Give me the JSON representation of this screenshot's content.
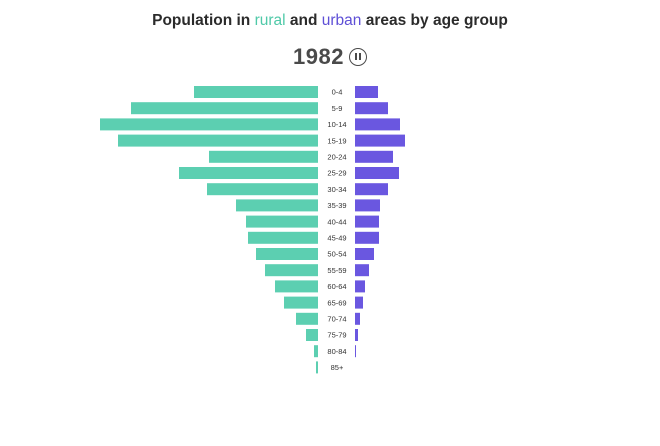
{
  "header": {
    "title_prefix": "Population in ",
    "title_rural": "rural",
    "title_middle": " and ",
    "title_urban": "urban",
    "title_suffix": " areas by age group",
    "year": "1982"
  },
  "controls": {
    "pause_icon": "pause-circle-icon"
  },
  "colors": {
    "rural": "#5ccfb1",
    "urban": "#6a57e0"
  },
  "chart_data": {
    "type": "bar",
    "orientation": "horizontal-population-pyramid",
    "categories": [
      "0-4",
      "5-9",
      "10-14",
      "15-19",
      "20-24",
      "25-29",
      "30-34",
      "35-39",
      "40-44",
      "45-49",
      "50-54",
      "55-59",
      "60-64",
      "65-69",
      "70-74",
      "75-79",
      "80-84",
      "85+"
    ],
    "series": [
      {
        "name": "rural",
        "side": "left",
        "values": [
          124,
          187,
          218,
          200,
          109,
          139,
          111,
          82,
          72,
          70,
          62,
          53,
          43,
          34,
          22,
          12,
          4,
          2
        ]
      },
      {
        "name": "urban",
        "side": "right",
        "values": [
          23,
          33,
          45,
          50,
          38,
          44,
          33,
          25,
          24,
          24,
          19,
          14,
          10,
          8,
          5,
          3,
          1,
          0
        ]
      }
    ],
    "legend": "inline-in-title",
    "grid": false
  }
}
